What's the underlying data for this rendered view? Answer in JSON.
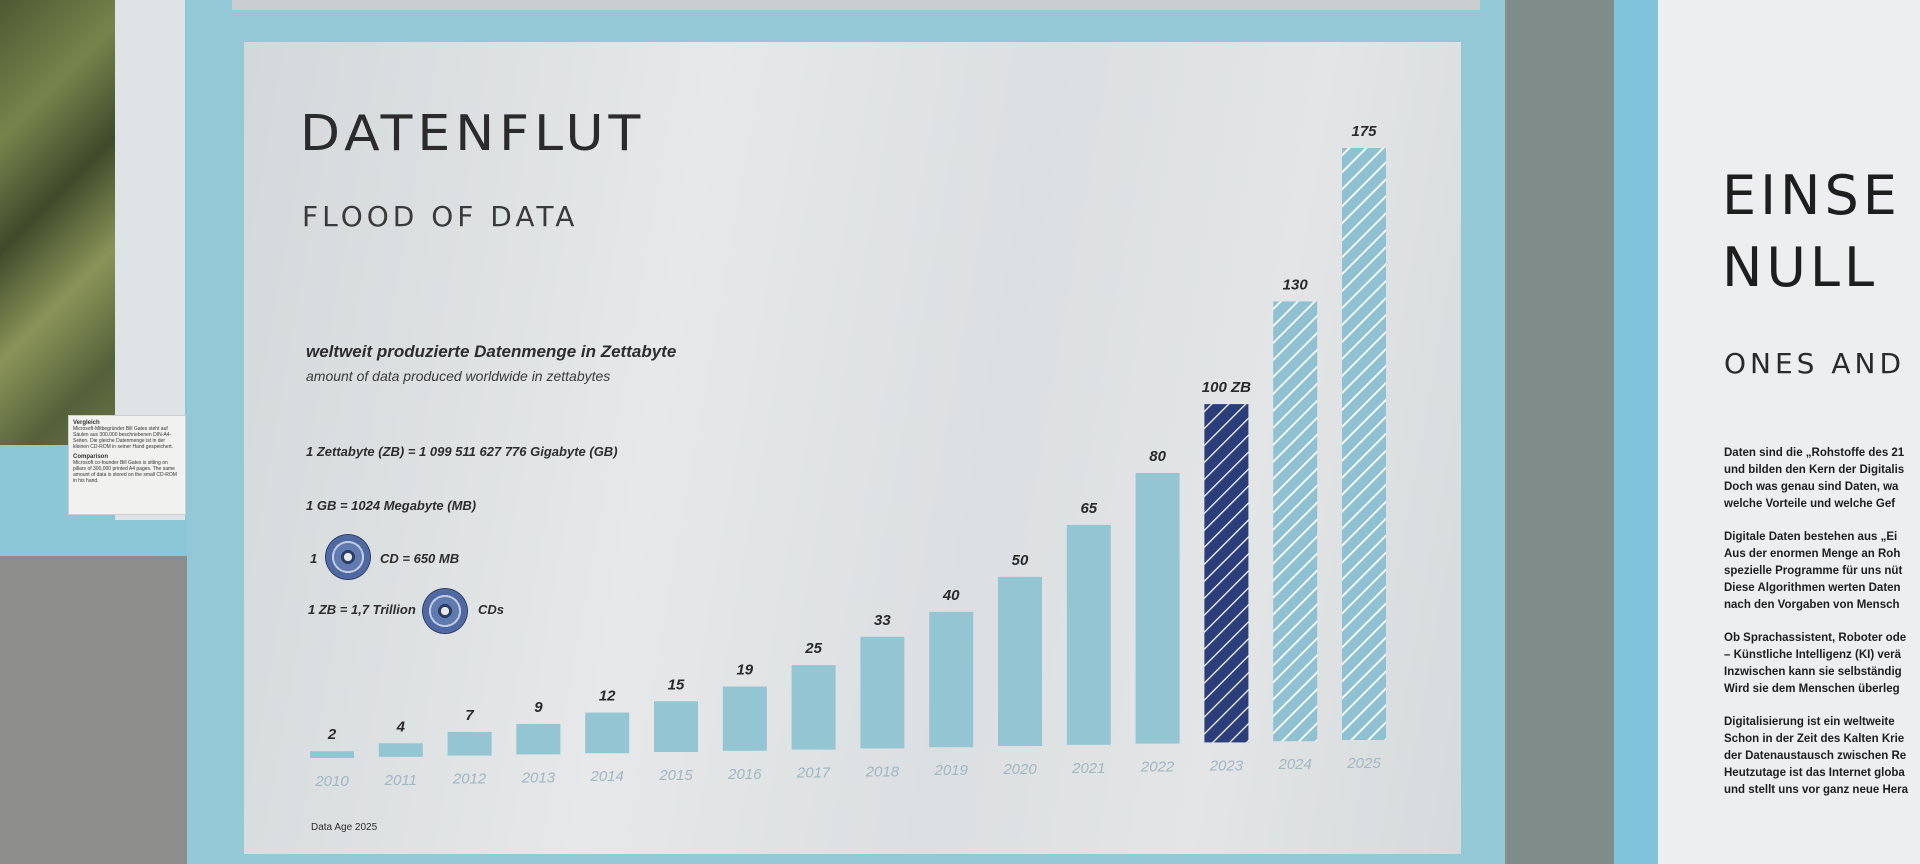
{
  "left_caption": {
    "title_de": "Vergleich",
    "text_de": "Microsoft-Mitbegründer Bill Gates steht auf Säulen aus 300.000 beschriebenen DIN-A4-Seiten. Die gleiche Datenmenge ist in der kleinen CD-ROM in seiner Hand gespeichert.",
    "title_en": "Comparison",
    "text_en": "Microsoft co-founder Bill Gates is sitting on pillars of 300,000 printed A4 pages. The same amount of data is stored on the small CD-ROM in his hand."
  },
  "poster": {
    "title": "DATENFLUT",
    "title_en": "FLOOD OF DATA",
    "subtitle": "weltweit produzierte Datenmenge in Zettabyte",
    "subtitle_en": "amount of data produced worldwide in zettabytes",
    "note_zettabyte": "1 Zettabyte (ZB) = 1 099 511 627 776 Gigabyte (GB)",
    "note_gb": "1 GB = 1024 Megabyte (MB)",
    "note_cd_prefix": "1",
    "note_cd_suffix": "CD = 650 MB",
    "note_trillion_prefix": "1 ZB = 1,7 Trillion",
    "note_trillion_suffix": "CDs",
    "cd_icon": "cd-disc-icon",
    "source": "Data Age 2025"
  },
  "chart_data": {
    "type": "bar",
    "title": "weltweit produzierte Datenmenge in Zettabyte",
    "categories": [
      "2010",
      "2011",
      "2012",
      "2013",
      "2014",
      "2015",
      "2016",
      "2017",
      "2018",
      "2019",
      "2020",
      "2021",
      "2022",
      "2023",
      "2024",
      "2025"
    ],
    "values": [
      2,
      4,
      7,
      9,
      12,
      15,
      19,
      25,
      33,
      40,
      50,
      65,
      80,
      100,
      130,
      175
    ],
    "value_labels": [
      "2",
      "4",
      "7",
      "9",
      "12",
      "15",
      "19",
      "25",
      "33",
      "40",
      "50",
      "65",
      "80",
      "100 ZB",
      "130",
      "175"
    ],
    "ylim": [
      0,
      175
    ],
    "grid": false,
    "bar_styles": [
      "solid",
      "solid",
      "solid",
      "solid",
      "solid",
      "solid",
      "solid",
      "solid",
      "solid",
      "solid",
      "solid",
      "solid",
      "solid",
      "highlight-hatched",
      "hatched",
      "hatched"
    ],
    "colors": {
      "solid": "#93c5d3",
      "highlight": "#2c3e7a",
      "hatched": "#8fc1d2",
      "hatch_line": "#ffffff"
    }
  },
  "right_panel": {
    "title_line1": "EINSE",
    "title_line2": "NULL",
    "subtitle": "ONES AND",
    "paragraphs": [
      [
        "Daten sind die „Rohstoffe des 21",
        "und bilden den Kern der Digitalis",
        "Doch was genau sind Daten, wa",
        "welche Vorteile und welche Gef"
      ],
      [
        "Digitale Daten bestehen aus „Ei",
        "Aus der enormen Menge an Roh",
        "spezielle Programme für uns nüt",
        "Diese Algorithmen werten Daten",
        "nach den Vorgaben von Mensch"
      ],
      [
        "Ob Sprachassistent, Roboter ode",
        "– Künstliche Intelligenz (KI) verä",
        "Inzwischen kann sie selbständig",
        "Wird sie dem Menschen überleg"
      ],
      [
        "Digitalisierung ist ein weltweite",
        "Schon in der Zeit des Kalten Krie",
        "der Datenaustausch zwischen Re",
        "Heutzutage ist das Internet globa",
        "und stellt uns vor ganz neue Hera"
      ]
    ]
  }
}
